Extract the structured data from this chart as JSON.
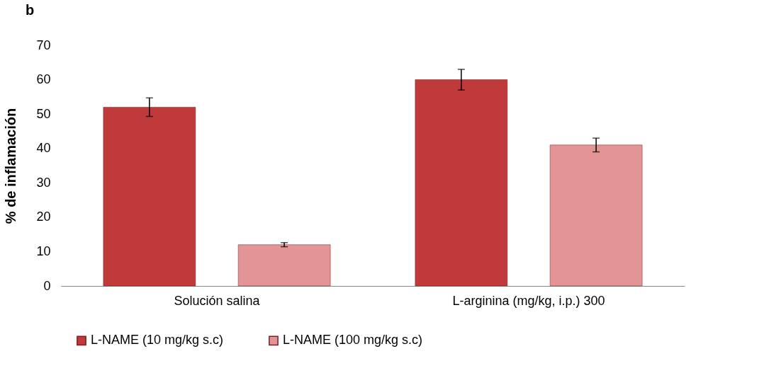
{
  "chart_data": {
    "type": "bar",
    "title": "b",
    "ylabel": "% de inflamación",
    "categories": [
      "Solución salina",
      "L-arginina (mg/kg, i.p.) 300"
    ],
    "series": [
      {
        "name": "L-NAME (10 mg/kg s.c)",
        "color": "#c0393b",
        "values": [
          52,
          60
        ],
        "errors": [
          2.7,
          3
        ]
      },
      {
        "name": "L-NAME (100 mg/kg s.c)",
        "color": "#e39595",
        "values": [
          12,
          41
        ],
        "errors": [
          0.6,
          2
        ]
      }
    ],
    "ylim": [
      0,
      70
    ],
    "yticks": [
      0,
      10,
      20,
      30,
      40,
      50,
      60,
      70
    ],
    "grid": false,
    "legend": "bottom"
  }
}
